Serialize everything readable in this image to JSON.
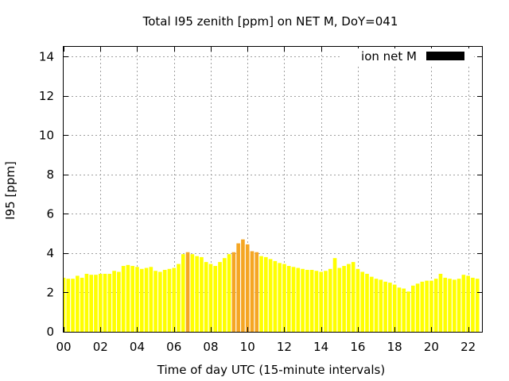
{
  "chart_data": {
    "type": "bar",
    "title": "Total I95 zenith [ppm] on NET M, DoY=041",
    "xlabel": "Time of day UTC (15-minute intervals)",
    "ylabel": "I95 [ppm]",
    "ylim": [
      0,
      14.5
    ],
    "xlim": [
      0,
      22.75
    ],
    "interval_hours": 0.25,
    "yticks": [
      0,
      2,
      4,
      6,
      8,
      10,
      12,
      14
    ],
    "xticks": [
      {
        "value": 0,
        "label": "00"
      },
      {
        "value": 2,
        "label": "02"
      },
      {
        "value": 4,
        "label": "04"
      },
      {
        "value": 6,
        "label": "06"
      },
      {
        "value": 8,
        "label": "08"
      },
      {
        "value": 10,
        "label": "10"
      },
      {
        "value": 12,
        "label": "12"
      },
      {
        "value": 14,
        "label": "14"
      },
      {
        "value": 16,
        "label": "16"
      },
      {
        "value": 18,
        "label": "18"
      },
      {
        "value": 20,
        "label": "20"
      },
      {
        "value": 22,
        "label": "22"
      }
    ],
    "grid": true,
    "legend": {
      "position": "top-right",
      "label": "ion net M",
      "color": "#000000"
    },
    "colors": {
      "normal": "#ffff00",
      "elevated": "#f5a623"
    },
    "elevated_threshold": 4.0,
    "series": [
      {
        "values": [
          2.75,
          2.7,
          2.7,
          2.85,
          2.75,
          2.95,
          2.9,
          2.9,
          2.95,
          2.95,
          2.95,
          3.1,
          3.05,
          3.35,
          3.4,
          3.35,
          3.3,
          3.2,
          3.25,
          3.3,
          3.1,
          3.05,
          3.15,
          3.2,
          3.25,
          3.45,
          3.95,
          4.05,
          3.95,
          3.85,
          3.8,
          3.55,
          3.45,
          3.35,
          3.55,
          3.75,
          3.95,
          4.05,
          4.5,
          4.7,
          4.45,
          4.1,
          4.05,
          3.85,
          3.8,
          3.7,
          3.6,
          3.5,
          3.45,
          3.35,
          3.3,
          3.25,
          3.2,
          3.15,
          3.15,
          3.1,
          3.05,
          3.1,
          3.2,
          3.75,
          3.25,
          3.35,
          3.45,
          3.55,
          3.2,
          3.05,
          2.95,
          2.8,
          2.7,
          2.65,
          2.55,
          2.5,
          2.4,
          2.25,
          2.2,
          2.05,
          2.35,
          2.45,
          2.55,
          2.6,
          2.6,
          2.7,
          2.95,
          2.75,
          2.7,
          2.65,
          2.7,
          2.9,
          2.85,
          2.75,
          2.7
        ]
      }
    ]
  }
}
